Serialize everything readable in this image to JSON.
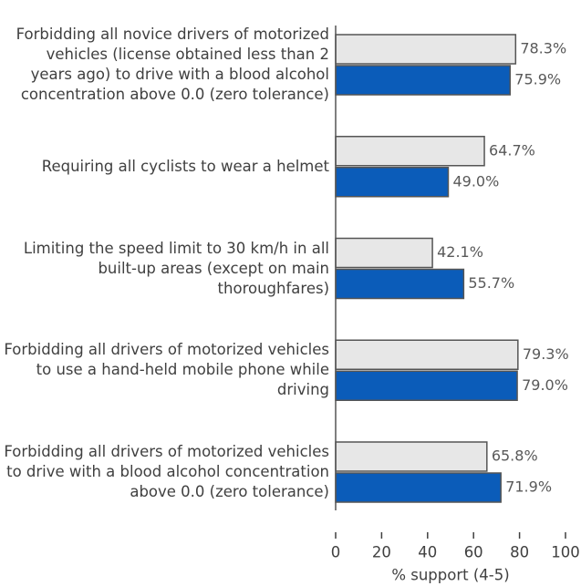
{
  "chart_data": {
    "type": "bar",
    "orientation": "horizontal",
    "categories": [
      "Forbidding all novice drivers of motorized vehicles (license obtained less than 2 years ago) to drive with a blood alcohol concentration above 0.0 (zero tolerance)",
      "Requiring all cyclists to wear a helmet",
      "Limiting the speed limit to 30 km/h in all built-up areas (except on main thoroughfares)",
      "Forbidding all drivers of motorized vehicles to use a hand-held mobile phone while driving",
      "Forbidding all drivers of motorized vehicles to drive with a blood alcohol concentration above 0.0 (zero tolerance)"
    ],
    "series": [
      {
        "color": "#e7e7e7",
        "values": [
          78.3,
          64.7,
          42.1,
          79.3,
          65.8
        ],
        "value_labels": [
          "78.3%",
          "64.7%",
          "42.1%",
          "79.3%",
          "65.8%"
        ]
      },
      {
        "color": "#0b5cb9",
        "values": [
          75.9,
          49.0,
          55.7,
          79.0,
          71.9
        ],
        "value_labels": [
          "75.9%",
          "49.0%",
          "55.7%",
          "79.0%",
          "71.9%"
        ]
      }
    ],
    "xlabel": "% support (4-5)",
    "xlim": [
      0,
      100
    ],
    "xticks": [
      0,
      20,
      40,
      60,
      80,
      100
    ]
  }
}
